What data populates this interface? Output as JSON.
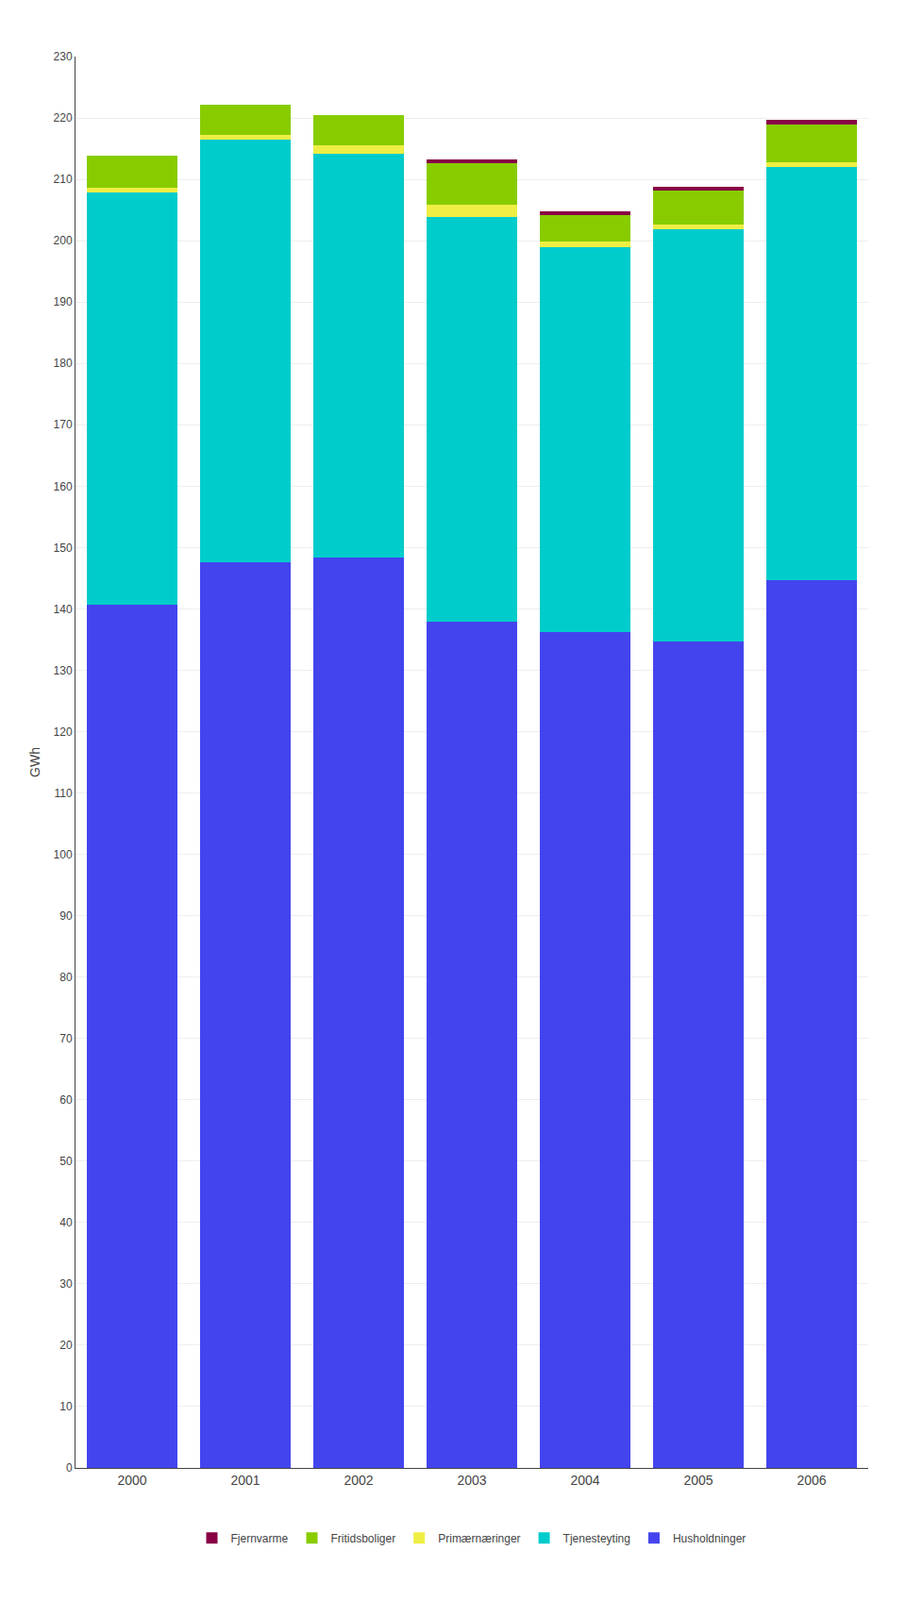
{
  "chart_data": {
    "type": "bar",
    "stacked": true,
    "categories": [
      "2000",
      "2001",
      "2002",
      "2003",
      "2004",
      "2005",
      "2006"
    ],
    "series": [
      {
        "name": "Husholdninger",
        "color": "#4444EE",
        "values": [
          140.6,
          147.6,
          148.3,
          137.9,
          136.2,
          134.7,
          144.7
        ]
      },
      {
        "name": "Tjenesteyting",
        "color": "#00CCCC",
        "values": [
          67.2,
          68.9,
          65.8,
          65.9,
          62.7,
          67.2,
          67.3
        ]
      },
      {
        "name": "Primærnæringer",
        "color": "#EEEE44",
        "values": [
          0.9,
          0.8,
          1.4,
          2.0,
          1.0,
          0.8,
          0.8
        ]
      },
      {
        "name": "Fritidsboliger",
        "color": "#88CC00",
        "values": [
          5.1,
          4.8,
          5.0,
          6.8,
          4.2,
          5.4,
          6.2
        ]
      },
      {
        "name": "Fjernvarme",
        "color": "#880044",
        "values": [
          0.0,
          0.0,
          0.0,
          0.7,
          0.7,
          0.7,
          0.7
        ]
      }
    ],
    "ylabel": "GWh",
    "ylim": [
      0,
      230
    ],
    "yticks": [
      0,
      10,
      20,
      30,
      40,
      50,
      60,
      70,
      80,
      90,
      100,
      110,
      120,
      130,
      140,
      150,
      160,
      170,
      180,
      190,
      200,
      210,
      220,
      230
    ],
    "grid": true,
    "legend": "bottom"
  }
}
